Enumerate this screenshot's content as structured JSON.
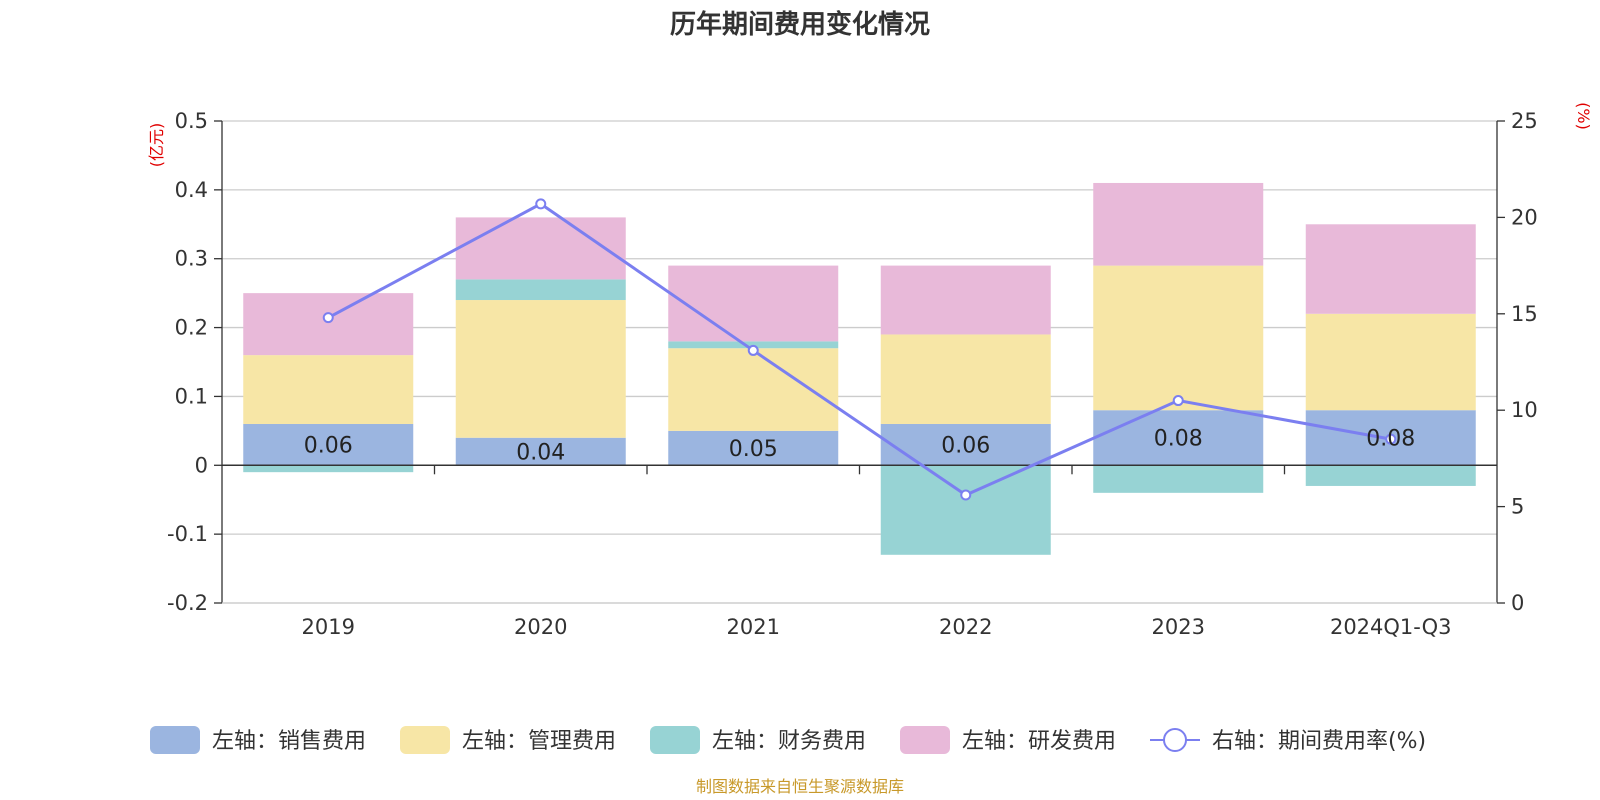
{
  "chart_data": {
    "type": "bar",
    "title": "历年期间费用变化情况",
    "categories": [
      "2019",
      "2020",
      "2021",
      "2022",
      "2023",
      "2024Q1-Q3"
    ],
    "left_axis": {
      "unit": "(亿元)",
      "ylim": [
        -0.2,
        0.5
      ],
      "ticks": [
        "0.5",
        "0.4",
        "0.3",
        "0.2",
        "0.1",
        "0",
        "-0.1",
        "-0.2"
      ],
      "tick_values": [
        0.5,
        0.4,
        0.3,
        0.2,
        0.1,
        0,
        -0.1,
        -0.2
      ]
    },
    "right_axis": {
      "unit": "(%)",
      "ylim": [
        0,
        25
      ],
      "ticks": [
        "25",
        "20",
        "15",
        "10",
        "5",
        "0"
      ],
      "tick_values": [
        25,
        20,
        15,
        10,
        5,
        0
      ]
    },
    "series": [
      {
        "name": "左轴：销售费用",
        "kind": "bar",
        "color": "#9bb5e0",
        "values": [
          0.06,
          0.04,
          0.05,
          0.06,
          0.08,
          0.08
        ]
      },
      {
        "name": "左轴：管理费用",
        "kind": "bar",
        "color": "#f7e6a6",
        "values": [
          0.1,
          0.2,
          0.12,
          0.13,
          0.21,
          0.14
        ]
      },
      {
        "name": "左轴：财务费用",
        "kind": "bar",
        "color": "#97d3d4",
        "values": [
          -0.01,
          0.03,
          0.01,
          -0.13,
          -0.04,
          -0.03
        ]
      },
      {
        "name": "左轴：研发费用",
        "kind": "bar",
        "color": "#e8b9d9",
        "values": [
          0.09,
          0.09,
          0.11,
          0.1,
          0.12,
          0.13
        ]
      },
      {
        "name": "右轴：期间费用率(%)",
        "kind": "line",
        "color": "#7b7ff0",
        "values": [
          14.8,
          20.7,
          13.1,
          5.6,
          10.5,
          8.5
        ]
      }
    ],
    "data_labels": [
      "0.06",
      "0.04",
      "0.05",
      "0.06",
      "0.08",
      "0.08"
    ],
    "grid": true,
    "legend_position": "bottom"
  },
  "source_note": "制图数据来自恒生聚源数据库"
}
